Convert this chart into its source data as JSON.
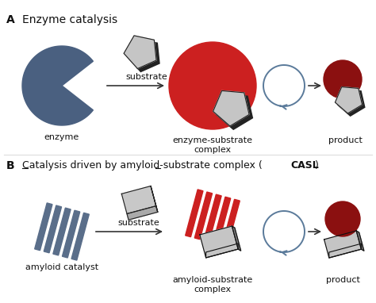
{
  "bg_color": "#ffffff",
  "enzyme_color": "#4a6080",
  "enzyme_circle_color": "#cc2020",
  "substrate_color": "#c0c0c0",
  "substrate_edge": "#222222",
  "amyloid_color": "#5a6e8a",
  "amyloid_red_color": "#cc2020",
  "product_circle_color": "#8b1010",
  "arrow_color": "#333333",
  "cycle_arrow_color": "#5a7a9a",
  "text_color": "#111111",
  "label_A": "A",
  "label_B": "B",
  "title_A": "Enzyme catalysis",
  "title_B_normal": "Catalysis driven by amyloid-substrate complex (",
  "title_B_bold": "CASL",
  "title_B_end": ")",
  "lbl_enzyme": "enzyme",
  "lbl_esc": "enzyme-substrate\ncomplex",
  "lbl_product_A": "product",
  "lbl_amyloid": "amyloid catalyst",
  "lbl_asc": "amyloid-substrate\ncomplex",
  "lbl_product_B": "product",
  "lbl_substrate": "substrate"
}
